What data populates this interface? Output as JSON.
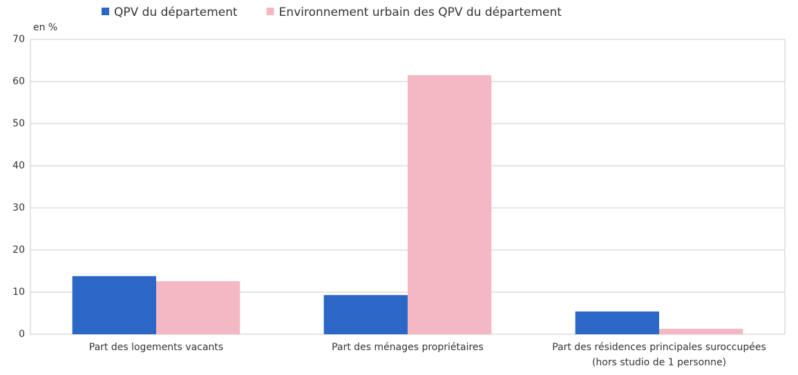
{
  "chart_data": {
    "type": "bar",
    "y_label": "en %",
    "categories": [
      "Part des logements vacants",
      "Part des ménages propriétaires",
      "Part des résidences principales suroccupées\n(hors studio de 1 personne)"
    ],
    "series": [
      {
        "name": "QPV du département",
        "color": "#2a67c6",
        "values": [
          13.8,
          9.3,
          5.4
        ]
      },
      {
        "name": "Environnement urbain des QPV du département",
        "color": "#f4b8c4",
        "values": [
          12.6,
          61.5,
          1.3
        ]
      }
    ],
    "ylim": [
      0,
      70
    ],
    "yticks": [
      0,
      10,
      20,
      30,
      40,
      50,
      60,
      70
    ],
    "grid": true,
    "legend": "top"
  }
}
